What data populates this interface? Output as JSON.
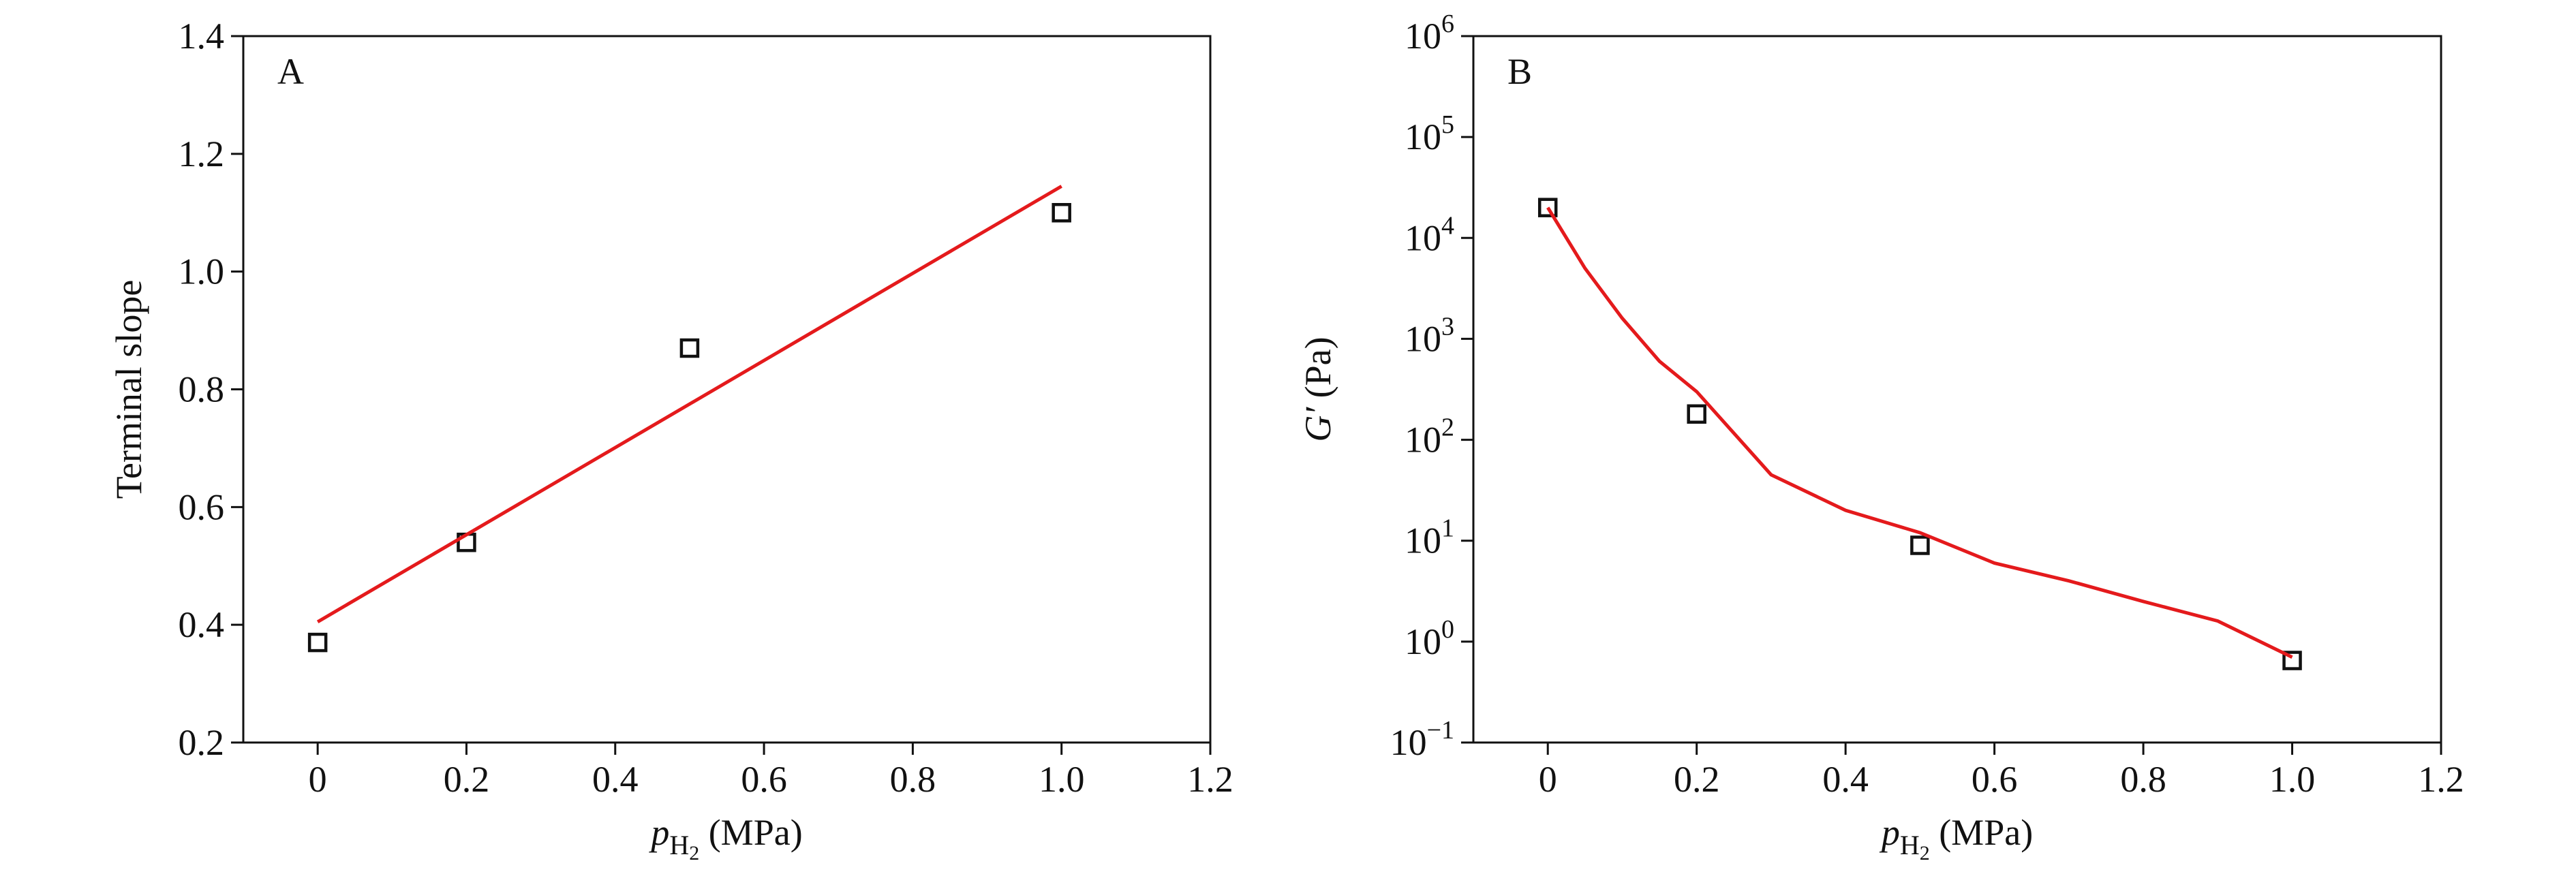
{
  "chart_data": [
    {
      "type": "scatter",
      "panel": "A",
      "ylabel": "Terminal slope",
      "xlabel": {
        "var": "p",
        "sub": "H",
        "subsub": "2",
        "unit": " (MPa)"
      },
      "xlim": [
        -0.1,
        1.2
      ],
      "ylim": [
        0.2,
        1.4
      ],
      "log_y": false,
      "xticks": [
        0,
        0.2,
        0.4,
        0.6,
        0.8,
        {
          "value": 1,
          "label": "1.0"
        },
        1.2
      ],
      "yticks": [
        0.2,
        0.4,
        0.6,
        0.8,
        {
          "value": 1,
          "label": "1.0"
        },
        1.2,
        1.4
      ],
      "series": [
        {
          "style": "marker",
          "color": "#111111",
          "x": [
            0,
            0.2,
            0.5,
            1.0
          ],
          "values": [
            0.37,
            0.54,
            0.87,
            1.1
          ]
        },
        {
          "style": "line",
          "color": "#e41a1c",
          "x": [
            0,
            1.0
          ],
          "values": [
            0.405,
            1.145
          ]
        }
      ]
    },
    {
      "type": "scatter",
      "panel": "B",
      "ylabel": {
        "var": "G′",
        "unit": " (Pa)"
      },
      "xlabel": {
        "var": "p",
        "sub": "H",
        "subsub": "2",
        "unit": " (MPa)"
      },
      "xlim": [
        -0.1,
        1.2
      ],
      "ylim": [
        0.1,
        1000000
      ],
      "log_y": true,
      "xticks": [
        0,
        0.2,
        0.4,
        0.6,
        0.8,
        {
          "value": 1,
          "label": "1.0"
        },
        1.2
      ],
      "yticks": [
        {
          "value": 0.1,
          "label": "10",
          "exponent": "−1"
        },
        {
          "value": 1,
          "label": "10",
          "exponent": "0"
        },
        {
          "value": 10,
          "label": "10",
          "exponent": "1"
        },
        {
          "value": 100,
          "label": "10",
          "exponent": "2"
        },
        {
          "value": 1000,
          "label": "10",
          "exponent": "3"
        },
        {
          "value": 10000,
          "label": "10",
          "exponent": "4"
        },
        {
          "value": 100000,
          "label": "10",
          "exponent": "5"
        },
        {
          "value": 1000000,
          "label": "10",
          "exponent": "6"
        }
      ],
      "series": [
        {
          "style": "marker",
          "color": "#111111",
          "x": [
            0,
            0.2,
            0.5,
            1.0
          ],
          "values": [
            20000,
            180,
            9,
            0.65
          ]
        },
        {
          "style": "line",
          "color": "#e41a1c",
          "x": [
            0,
            0.05,
            0.1,
            0.15,
            0.2,
            0.3,
            0.4,
            0.5,
            0.6,
            0.7,
            0.8,
            0.9,
            1.0
          ],
          "values": [
            20000,
            5000,
            1600,
            600,
            300,
            45,
            20,
            12,
            6,
            4,
            2.5,
            1.6,
            0.7
          ]
        }
      ]
    }
  ]
}
